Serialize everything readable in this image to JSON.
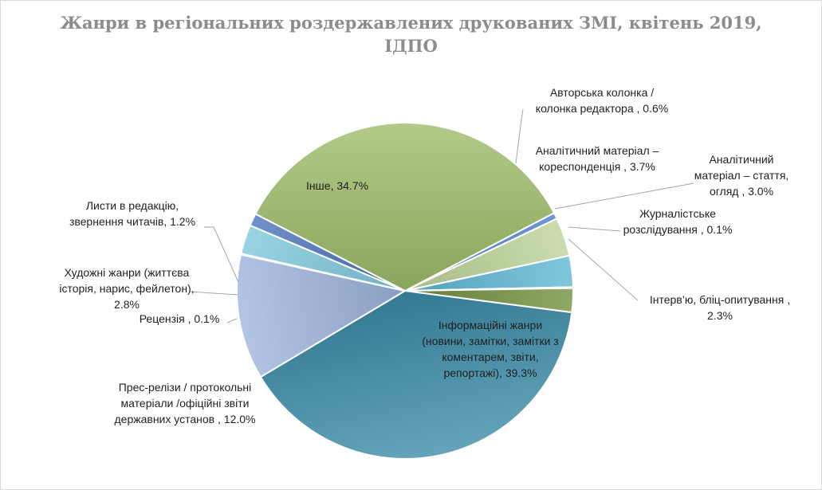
{
  "chart_data": {
    "type": "pie",
    "title_lines": [
      "Жанри в регіональних роздержавлених друкованих ЗМІ, квітень 2019,",
      "ІДПО"
    ],
    "slices": [
      {
        "label_lines": [
          "Авторська колонка /",
          "колонка редактора , 0.6%"
        ],
        "value": 0.6,
        "color": "#4a7bc6"
      },
      {
        "label_lines": [
          "Аналітичний матеріал –",
          "кореспонденція , 3.7%"
        ],
        "value": 3.7,
        "color": "#bcd497"
      },
      {
        "label_lines": [
          "Аналітичний",
          "матеріал – стаття,",
          "огляд , 3.0%"
        ],
        "value": 3.0,
        "color": "#5cb7d2"
      },
      {
        "label_lines": [
          "Журналістське",
          "розслідування , 0.1%"
        ],
        "value": 0.1,
        "color": "#2e75b6"
      },
      {
        "label_lines": [
          "Інтерв’ю, бліц-опитування ,",
          "2.3%"
        ],
        "value": 2.3,
        "color": "#6f8f3c"
      },
      {
        "label_lines": [
          "Інформаційні жанри",
          "(новини, замітки, замітки з",
          "коментарем, звіти,",
          "репортажі), 39.3%"
        ],
        "value": 39.3,
        "color": "#3a8aa6"
      },
      {
        "label_lines": [
          "Прес-релізи / протокольні",
          "матеріали /офіційні звіти",
          "державних установ , 12.0%"
        ],
        "value": 12.0,
        "color": "#9db4de"
      },
      {
        "label_lines": [
          "Рецензія , 0.1%"
        ],
        "value": 0.1,
        "color": "#4f6fb0"
      },
      {
        "label_lines": [
          "Художні жанри (життєва",
          "історія, нарис, фейлетон),",
          "2.8%"
        ],
        "value": 2.8,
        "color": "#7ec8dc"
      },
      {
        "label_lines": [
          "Листи в редакцію,",
          "звернення читачів, 1.2%"
        ],
        "value": 1.2,
        "color": "#4a72b8"
      },
      {
        "label_lines": [
          "Інше, 34.7%"
        ],
        "value": 34.7,
        "color": "#9dbb68"
      }
    ]
  }
}
